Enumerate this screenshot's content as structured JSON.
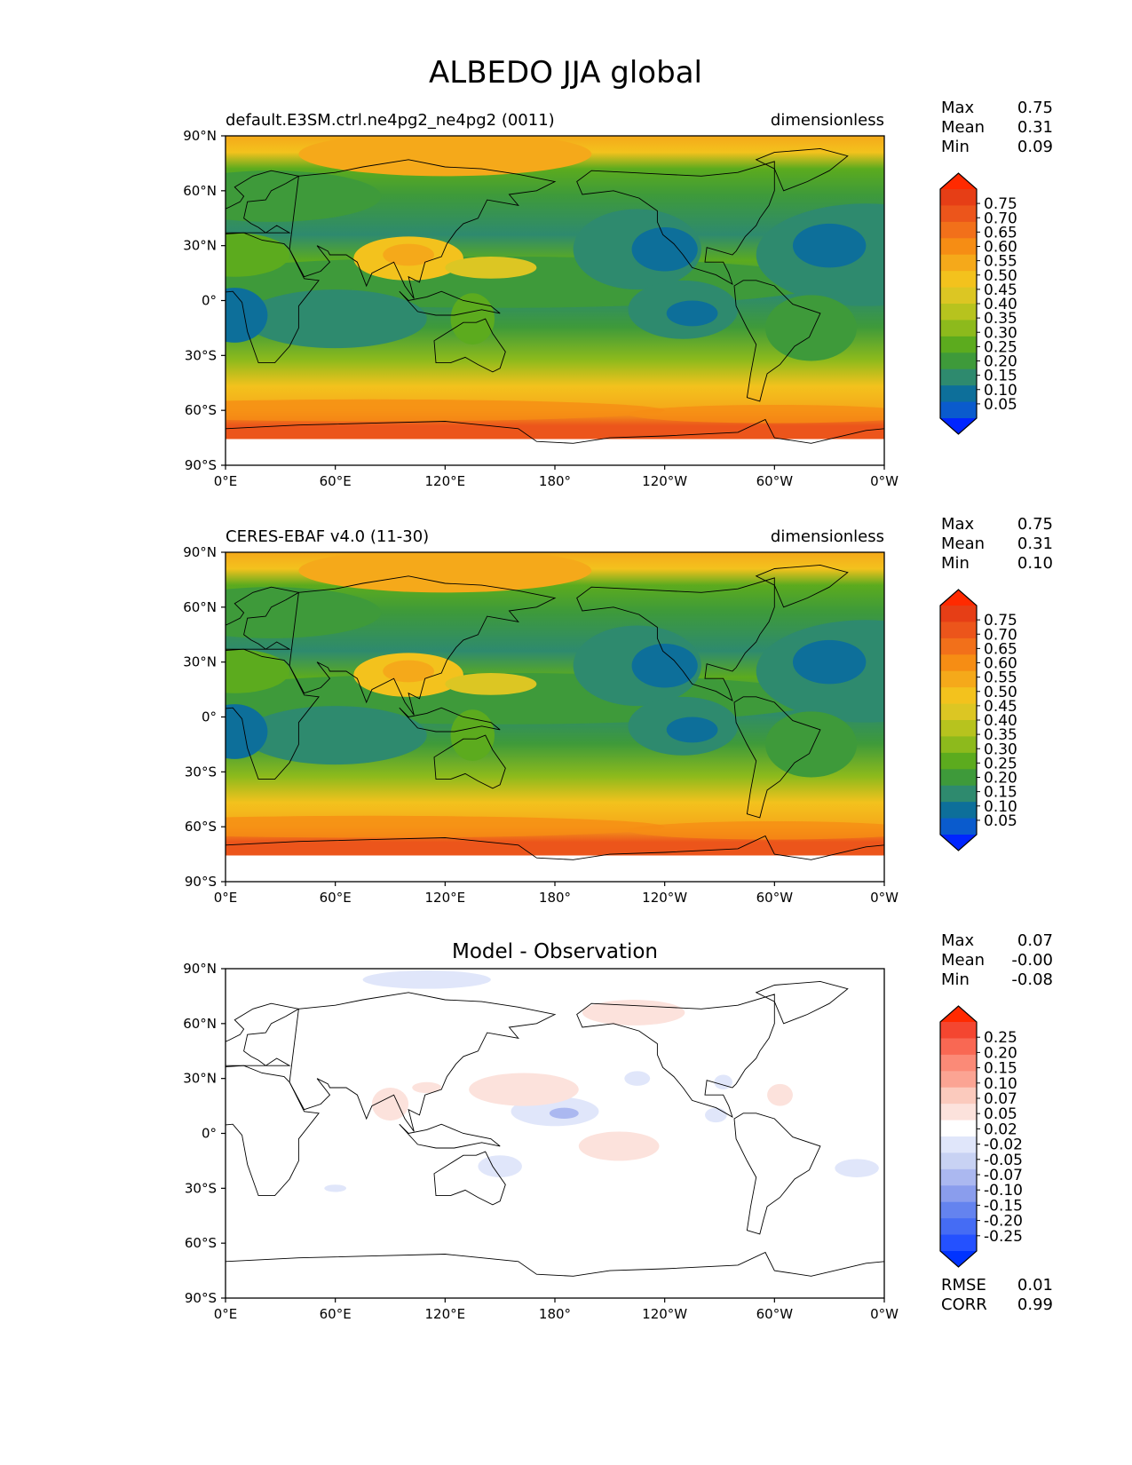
{
  "figure": {
    "title": "ALBEDO JJA global"
  },
  "tick_labels": {
    "lat": [
      "90°N",
      "60°N",
      "30°N",
      "0°",
      "30°S",
      "60°S",
      "90°S"
    ],
    "lon": [
      "0°E",
      "60°E",
      "120°E",
      "180°",
      "120°W",
      "60°W",
      "0°W"
    ]
  },
  "colors": {
    "field_levels": [
      "#0025ff",
      "#0a5bcd",
      "#0d6f9a",
      "#2e8a6e",
      "#3e9a3a",
      "#5cab1e",
      "#8dba1c",
      "#b7c31e",
      "#dcc623",
      "#f3c21d",
      "#f5a91a",
      "#f68d14",
      "#f2701a",
      "#ec551b",
      "#e63e16",
      "#ff2a00"
    ],
    "diff_levels": [
      "#0033ff",
      "#2451ff",
      "#456cf4",
      "#6483ef",
      "#8a9ded",
      "#abb8f0",
      "#c8d2f3",
      "#e0e6fa",
      "#ffffff",
      "#fce2dc",
      "#fbcabd",
      "#fba493",
      "#fb8a77",
      "#f96853",
      "#f44630",
      "#ff2a00"
    ]
  },
  "chart_data": [
    {
      "type": "heatmap",
      "panel": "model",
      "title_left": "default.E3SM.ctrl.ne4pg2_ne4pg2 (0011)",
      "title_right": "dimensionless",
      "xlim": [
        0,
        360
      ],
      "ylim": [
        -90,
        90
      ],
      "stats": [
        {
          "label": "Max",
          "value": "0.75"
        },
        {
          "label": "Mean",
          "value": "0.31"
        },
        {
          "label": "Min",
          "value": "0.09"
        }
      ],
      "colorbar_levels": [
        "0.75",
        "0.70",
        "0.65",
        "0.60",
        "0.55",
        "0.50",
        "0.45",
        "0.40",
        "0.35",
        "0.30",
        "0.25",
        "0.20",
        "0.15",
        "0.10",
        "0.05"
      ]
    },
    {
      "type": "heatmap",
      "panel": "observation",
      "title_left": "CERES-EBAF v4.0 (11-30)",
      "title_right": "dimensionless",
      "xlim": [
        0,
        360
      ],
      "ylim": [
        -90,
        90
      ],
      "stats": [
        {
          "label": "Max",
          "value": "0.75"
        },
        {
          "label": "Mean",
          "value": "0.31"
        },
        {
          "label": "Min",
          "value": "0.10"
        }
      ],
      "colorbar_levels": [
        "0.75",
        "0.70",
        "0.65",
        "0.60",
        "0.55",
        "0.50",
        "0.45",
        "0.40",
        "0.35",
        "0.30",
        "0.25",
        "0.20",
        "0.15",
        "0.10",
        "0.05"
      ]
    },
    {
      "type": "heatmap",
      "panel": "difference",
      "title_center": "Model - Observation",
      "xlim": [
        0,
        360
      ],
      "ylim": [
        -90,
        90
      ],
      "stats": [
        {
          "label": "Max",
          "value": "0.07"
        },
        {
          "label": "Mean",
          "value": "-0.00"
        },
        {
          "label": "Min",
          "value": "-0.08"
        }
      ],
      "colorbar_levels": [
        "0.25",
        "0.20",
        "0.15",
        "0.10",
        "0.07",
        "0.05",
        "0.02",
        "-0.02",
        "-0.05",
        "-0.07",
        "-0.10",
        "-0.15",
        "-0.20",
        "-0.25"
      ],
      "metrics": [
        {
          "label": "RMSE",
          "value": "0.01"
        },
        {
          "label": "CORR",
          "value": "0.99"
        }
      ]
    }
  ]
}
